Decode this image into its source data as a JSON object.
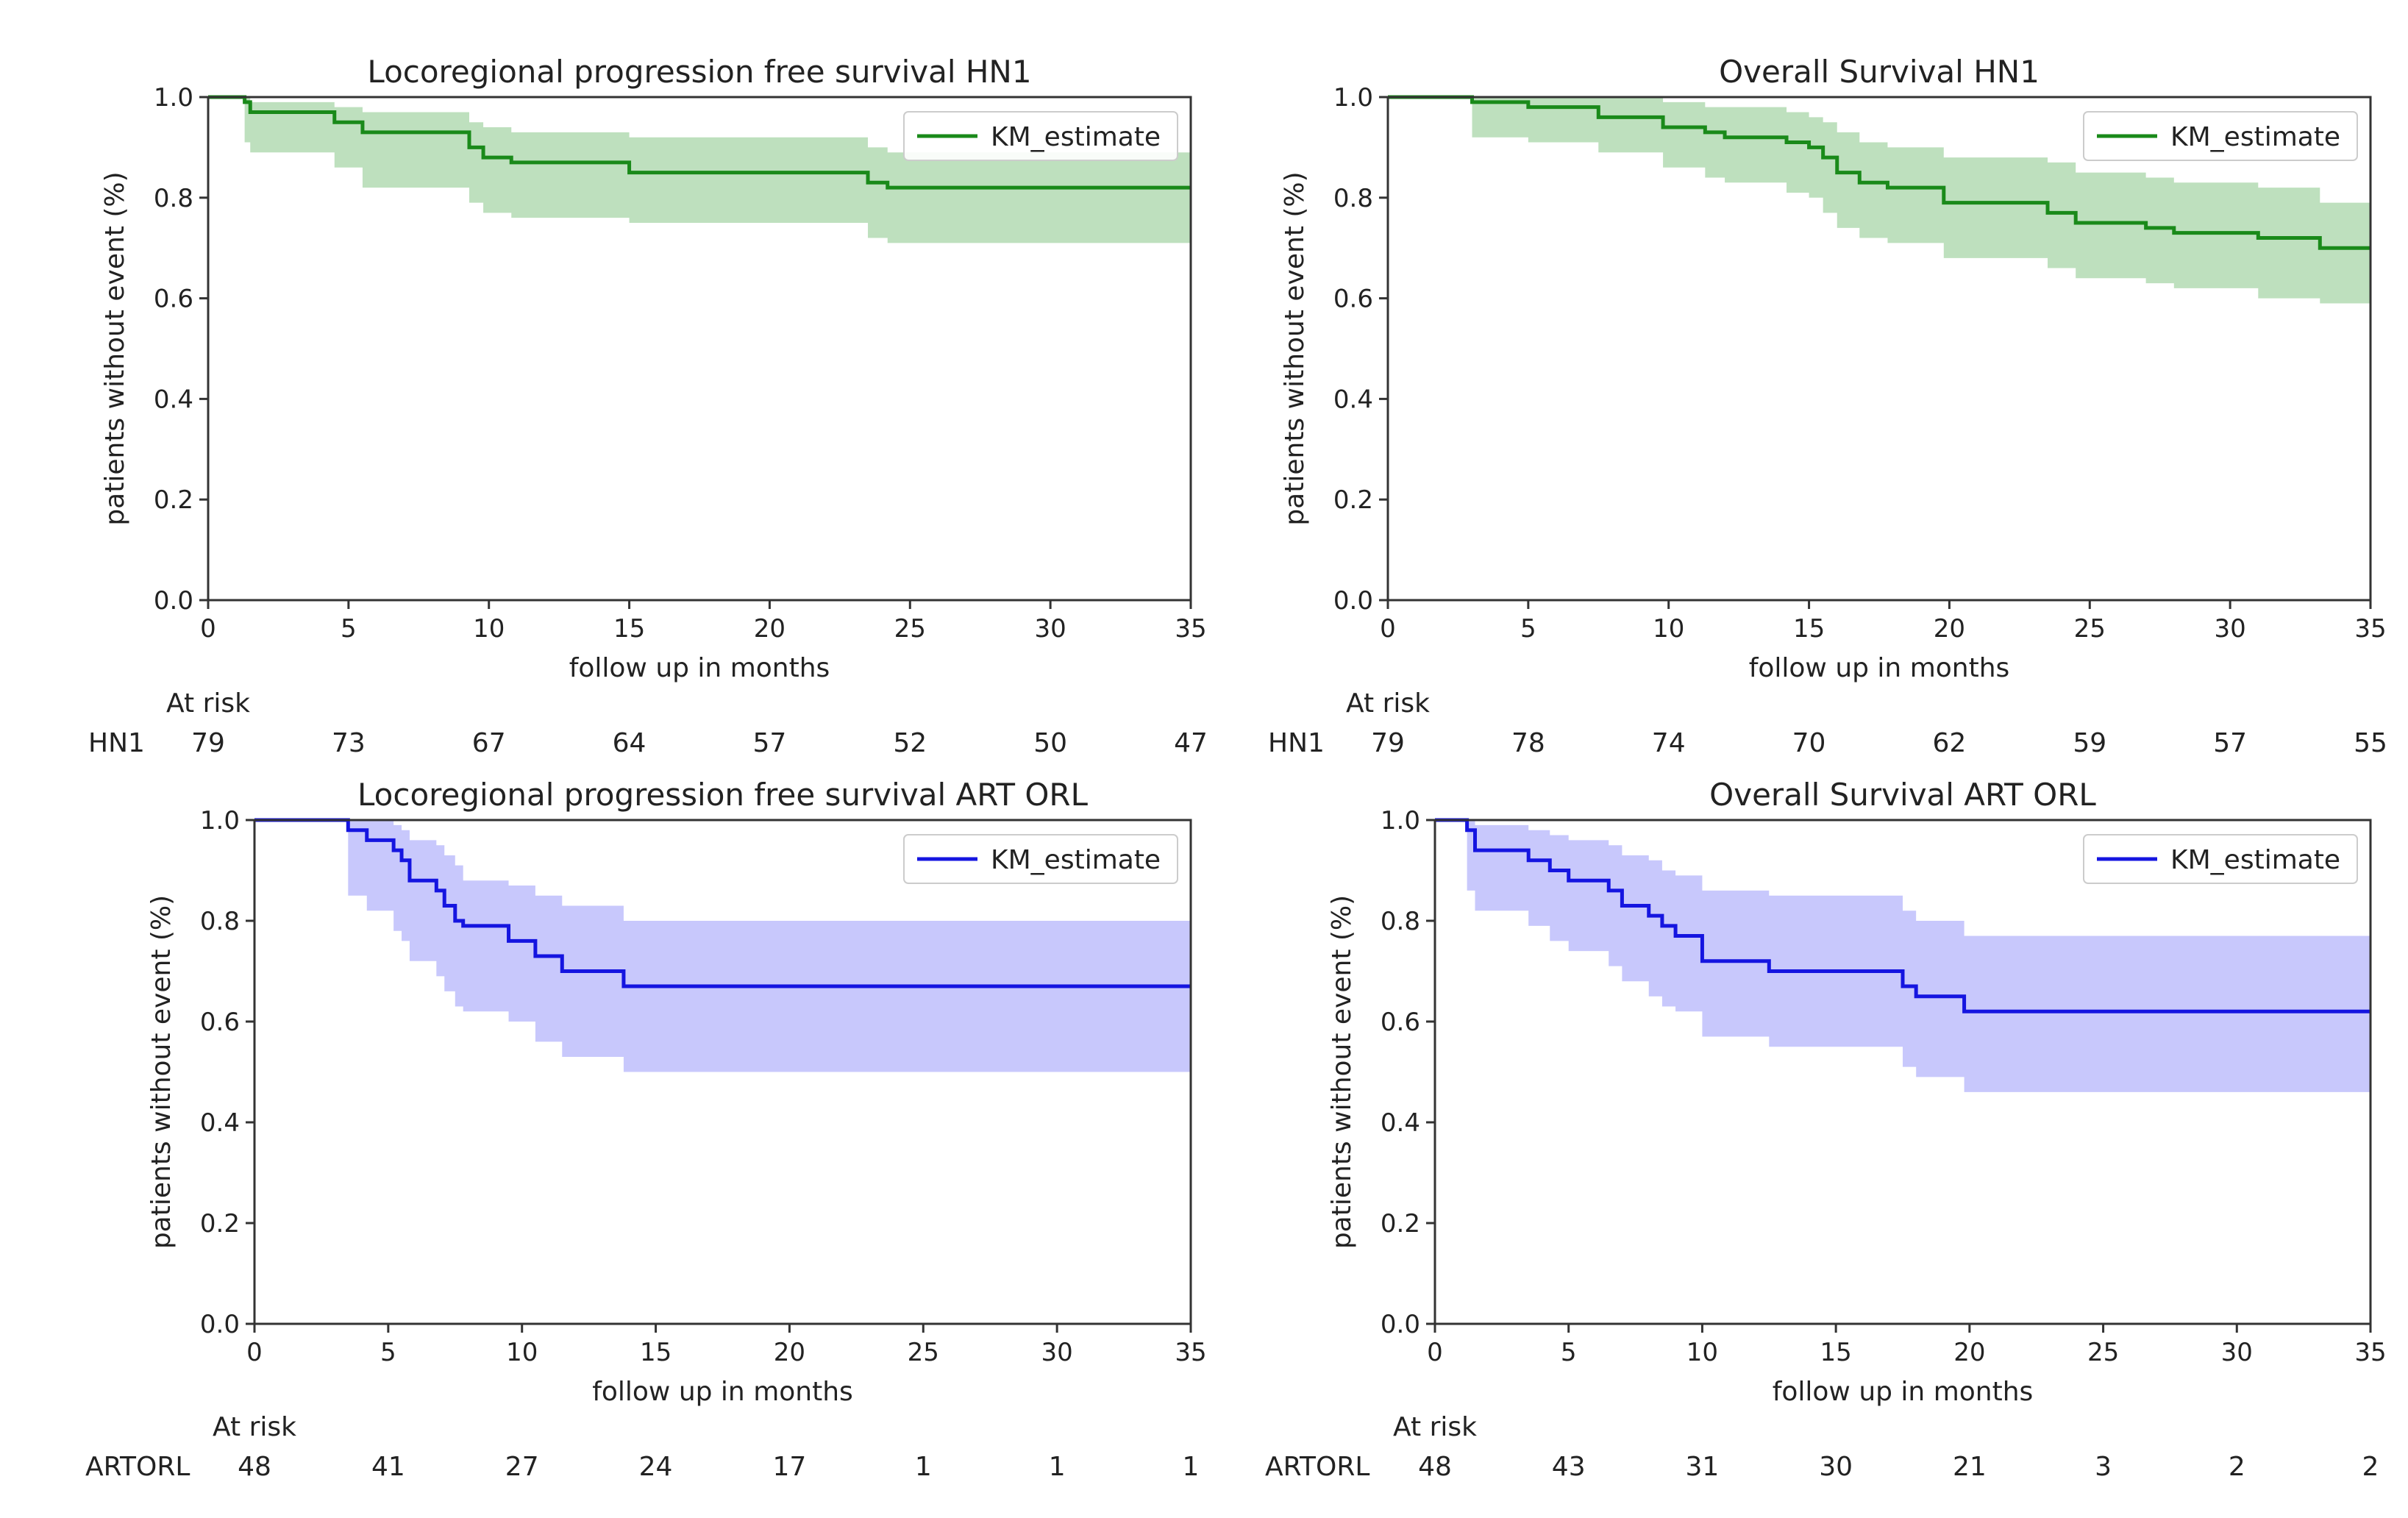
{
  "chart_data": [
    {
      "type": "line",
      "title": "Locoregional progression free survival HN1",
      "xlabel": "follow up in months",
      "ylabel": "patients without event (%)",
      "xlim": [
        0,
        35
      ],
      "ylim": [
        0,
        1.0
      ],
      "x_ticks": [
        "0",
        "5",
        "10",
        "15",
        "20",
        "25",
        "30",
        "35"
      ],
      "y_ticks": [
        "0.0",
        "0.2",
        "0.4",
        "0.6",
        "0.8",
        "1.0"
      ],
      "legend": "KM_estimate",
      "legend_position": "top-right",
      "color": "#1a8a1a",
      "band_color": "#a8d5a8",
      "steps": [
        [
          0,
          1.0
        ],
        [
          1.3,
          0.99
        ],
        [
          1.5,
          0.97
        ],
        [
          4.5,
          0.95
        ],
        [
          5.5,
          0.93
        ],
        [
          9.3,
          0.9
        ],
        [
          9.8,
          0.88
        ],
        [
          10.8,
          0.87
        ],
        [
          15,
          0.85
        ],
        [
          23.5,
          0.83
        ],
        [
          24.2,
          0.82
        ],
        [
          35,
          0.82
        ]
      ],
      "ci_upper": [
        [
          0,
          1.0
        ],
        [
          1.3,
          1.0
        ],
        [
          1.5,
          0.99
        ],
        [
          4.5,
          0.98
        ],
        [
          5.5,
          0.97
        ],
        [
          9.3,
          0.95
        ],
        [
          9.8,
          0.94
        ],
        [
          10.8,
          0.93
        ],
        [
          15,
          0.92
        ],
        [
          23.5,
          0.9
        ],
        [
          24.2,
          0.89
        ],
        [
          35,
          0.89
        ]
      ],
      "ci_lower": [
        [
          0,
          1.0
        ],
        [
          1.3,
          0.91
        ],
        [
          1.5,
          0.89
        ],
        [
          4.5,
          0.86
        ],
        [
          5.5,
          0.82
        ],
        [
          9.3,
          0.79
        ],
        [
          9.8,
          0.77
        ],
        [
          10.8,
          0.76
        ],
        [
          15,
          0.75
        ],
        [
          23.5,
          0.72
        ],
        [
          24.2,
          0.71
        ],
        [
          35,
          0.71
        ]
      ],
      "risk_label": "HN1",
      "risk_values": [
        "79",
        "73",
        "67",
        "64",
        "57",
        "52",
        "50",
        "47"
      ],
      "at_risk_title": "At risk"
    },
    {
      "type": "line",
      "title": "Overall Survival HN1",
      "xlabel": "follow up in months",
      "ylabel": "patients without event (%)",
      "xlim": [
        0,
        35
      ],
      "ylim": [
        0,
        1.0
      ],
      "x_ticks": [
        "0",
        "5",
        "10",
        "15",
        "20",
        "25",
        "30",
        "35"
      ],
      "y_ticks": [
        "0.0",
        "0.2",
        "0.4",
        "0.6",
        "0.8",
        "1.0"
      ],
      "legend": "KM_estimate",
      "legend_position": "top-right",
      "color": "#1a8a1a",
      "band_color": "#a8d5a8",
      "steps": [
        [
          0,
          1.0
        ],
        [
          3,
          0.99
        ],
        [
          5,
          0.98
        ],
        [
          7.5,
          0.96
        ],
        [
          9.8,
          0.94
        ],
        [
          11.3,
          0.93
        ],
        [
          12,
          0.92
        ],
        [
          14.2,
          0.91
        ],
        [
          15,
          0.9
        ],
        [
          15.5,
          0.88
        ],
        [
          16,
          0.85
        ],
        [
          16.8,
          0.83
        ],
        [
          17.8,
          0.82
        ],
        [
          19.8,
          0.79
        ],
        [
          23.5,
          0.77
        ],
        [
          24.5,
          0.75
        ],
        [
          27,
          0.74
        ],
        [
          28,
          0.73
        ],
        [
          31,
          0.72
        ],
        [
          33.2,
          0.7
        ],
        [
          35,
          0.7
        ]
      ],
      "ci_upper": [
        [
          0,
          1.0
        ],
        [
          3,
          1.0
        ],
        [
          5,
          1.0
        ],
        [
          7.5,
          1.0
        ],
        [
          9.8,
          0.99
        ],
        [
          11.3,
          0.98
        ],
        [
          12,
          0.98
        ],
        [
          14.2,
          0.97
        ],
        [
          15,
          0.96
        ],
        [
          15.5,
          0.95
        ],
        [
          16,
          0.93
        ],
        [
          16.8,
          0.91
        ],
        [
          17.8,
          0.9
        ],
        [
          19.8,
          0.88
        ],
        [
          23.5,
          0.87
        ],
        [
          24.5,
          0.85
        ],
        [
          27,
          0.84
        ],
        [
          28,
          0.83
        ],
        [
          31,
          0.82
        ],
        [
          33.2,
          0.79
        ],
        [
          35,
          0.79
        ]
      ],
      "ci_lower": [
        [
          0,
          1.0
        ],
        [
          3,
          0.92
        ],
        [
          5,
          0.91
        ],
        [
          7.5,
          0.89
        ],
        [
          9.8,
          0.86
        ],
        [
          11.3,
          0.84
        ],
        [
          12,
          0.83
        ],
        [
          14.2,
          0.81
        ],
        [
          15,
          0.8
        ],
        [
          15.5,
          0.77
        ],
        [
          16,
          0.74
        ],
        [
          16.8,
          0.72
        ],
        [
          17.8,
          0.71
        ],
        [
          19.8,
          0.68
        ],
        [
          23.5,
          0.66
        ],
        [
          24.5,
          0.64
        ],
        [
          27,
          0.63
        ],
        [
          28,
          0.62
        ],
        [
          31,
          0.6
        ],
        [
          33.2,
          0.59
        ],
        [
          35,
          0.59
        ]
      ],
      "risk_label": "HN1",
      "risk_values": [
        "79",
        "78",
        "74",
        "70",
        "62",
        "59",
        "57",
        "55"
      ],
      "at_risk_title": "At risk"
    },
    {
      "type": "line",
      "title": "Locoregional progression free survival ART ORL",
      "xlabel": "follow up in months",
      "ylabel": "patients without event (%)",
      "xlim": [
        0,
        35
      ],
      "ylim": [
        0,
        1.0
      ],
      "x_ticks": [
        "0",
        "5",
        "10",
        "15",
        "20",
        "25",
        "30",
        "35"
      ],
      "y_ticks": [
        "0.0",
        "0.2",
        "0.4",
        "0.6",
        "0.8",
        "1.0"
      ],
      "legend": "KM_estimate",
      "legend_position": "top-right",
      "color": "#1515e0",
      "band_color": "#b5b5fb",
      "steps": [
        [
          0,
          1.0
        ],
        [
          3.5,
          0.98
        ],
        [
          4.2,
          0.96
        ],
        [
          5.2,
          0.94
        ],
        [
          5.5,
          0.92
        ],
        [
          5.8,
          0.88
        ],
        [
          6.8,
          0.86
        ],
        [
          7.1,
          0.83
        ],
        [
          7.5,
          0.8
        ],
        [
          7.8,
          0.79
        ],
        [
          9.5,
          0.76
        ],
        [
          10.5,
          0.73
        ],
        [
          11.5,
          0.7
        ],
        [
          13.8,
          0.67
        ],
        [
          35,
          0.67
        ]
      ],
      "ci_upper": [
        [
          0,
          1.0
        ],
        [
          3.5,
          1.0
        ],
        [
          4.2,
          1.0
        ],
        [
          5.2,
          0.99
        ],
        [
          5.5,
          0.98
        ],
        [
          5.8,
          0.96
        ],
        [
          6.8,
          0.95
        ],
        [
          7.1,
          0.93
        ],
        [
          7.5,
          0.91
        ],
        [
          7.8,
          0.88
        ],
        [
          9.5,
          0.87
        ],
        [
          10.5,
          0.85
        ],
        [
          11.5,
          0.83
        ],
        [
          13.8,
          0.8
        ],
        [
          35,
          0.8
        ]
      ],
      "ci_lower": [
        [
          0,
          1.0
        ],
        [
          3.5,
          0.85
        ],
        [
          4.2,
          0.82
        ],
        [
          5.2,
          0.78
        ],
        [
          5.5,
          0.76
        ],
        [
          5.8,
          0.72
        ],
        [
          6.8,
          0.69
        ],
        [
          7.1,
          0.66
        ],
        [
          7.5,
          0.63
        ],
        [
          7.8,
          0.62
        ],
        [
          9.5,
          0.6
        ],
        [
          10.5,
          0.56
        ],
        [
          11.5,
          0.53
        ],
        [
          13.8,
          0.5
        ],
        [
          35,
          0.5
        ]
      ],
      "risk_label": "ARTORL",
      "risk_values": [
        "48",
        "41",
        "27",
        "24",
        "17",
        "1",
        "1",
        "1"
      ],
      "at_risk_title": "At risk"
    },
    {
      "type": "line",
      "title": "Overall Survival ART ORL",
      "xlabel": "follow up in months",
      "ylabel": "patients without event (%)",
      "xlim": [
        0,
        35
      ],
      "ylim": [
        0,
        1.0
      ],
      "x_ticks": [
        "0",
        "5",
        "10",
        "15",
        "20",
        "25",
        "30",
        "35"
      ],
      "y_ticks": [
        "0.0",
        "0.2",
        "0.4",
        "0.6",
        "0.8",
        "1.0"
      ],
      "legend": "KM_estimate",
      "legend_position": "top-right",
      "color": "#1515e0",
      "band_color": "#b5b5fb",
      "steps": [
        [
          0,
          1.0
        ],
        [
          1.2,
          0.98
        ],
        [
          1.5,
          0.94
        ],
        [
          3.5,
          0.92
        ],
        [
          4.3,
          0.9
        ],
        [
          5,
          0.88
        ],
        [
          6.5,
          0.86
        ],
        [
          7,
          0.83
        ],
        [
          8,
          0.81
        ],
        [
          8.5,
          0.79
        ],
        [
          9,
          0.77
        ],
        [
          10,
          0.72
        ],
        [
          12.5,
          0.7
        ],
        [
          17.5,
          0.67
        ],
        [
          18,
          0.65
        ],
        [
          19.8,
          0.62
        ],
        [
          35,
          0.62
        ]
      ],
      "ci_upper": [
        [
          0,
          1.0
        ],
        [
          1.2,
          1.0
        ],
        [
          1.5,
          0.99
        ],
        [
          3.5,
          0.98
        ],
        [
          4.3,
          0.97
        ],
        [
          5,
          0.96
        ],
        [
          6.5,
          0.95
        ],
        [
          7,
          0.93
        ],
        [
          8,
          0.92
        ],
        [
          8.5,
          0.9
        ],
        [
          9,
          0.89
        ],
        [
          10,
          0.86
        ],
        [
          12.5,
          0.85
        ],
        [
          17.5,
          0.82
        ],
        [
          18,
          0.8
        ],
        [
          19.8,
          0.77
        ],
        [
          35,
          0.75
        ]
      ],
      "ci_lower": [
        [
          0,
          1.0
        ],
        [
          1.2,
          0.86
        ],
        [
          1.5,
          0.82
        ],
        [
          3.5,
          0.79
        ],
        [
          4.3,
          0.76
        ],
        [
          5,
          0.74
        ],
        [
          6.5,
          0.71
        ],
        [
          7,
          0.68
        ],
        [
          8,
          0.65
        ],
        [
          8.5,
          0.63
        ],
        [
          9,
          0.62
        ],
        [
          10,
          0.57
        ],
        [
          12.5,
          0.55
        ],
        [
          17.5,
          0.51
        ],
        [
          18,
          0.49
        ],
        [
          19.8,
          0.46
        ],
        [
          35,
          0.46
        ]
      ],
      "risk_label": "ARTORL",
      "risk_values": [
        "48",
        "43",
        "31",
        "30",
        "21",
        "3",
        "2",
        "2"
      ],
      "at_risk_title": "At risk"
    }
  ]
}
